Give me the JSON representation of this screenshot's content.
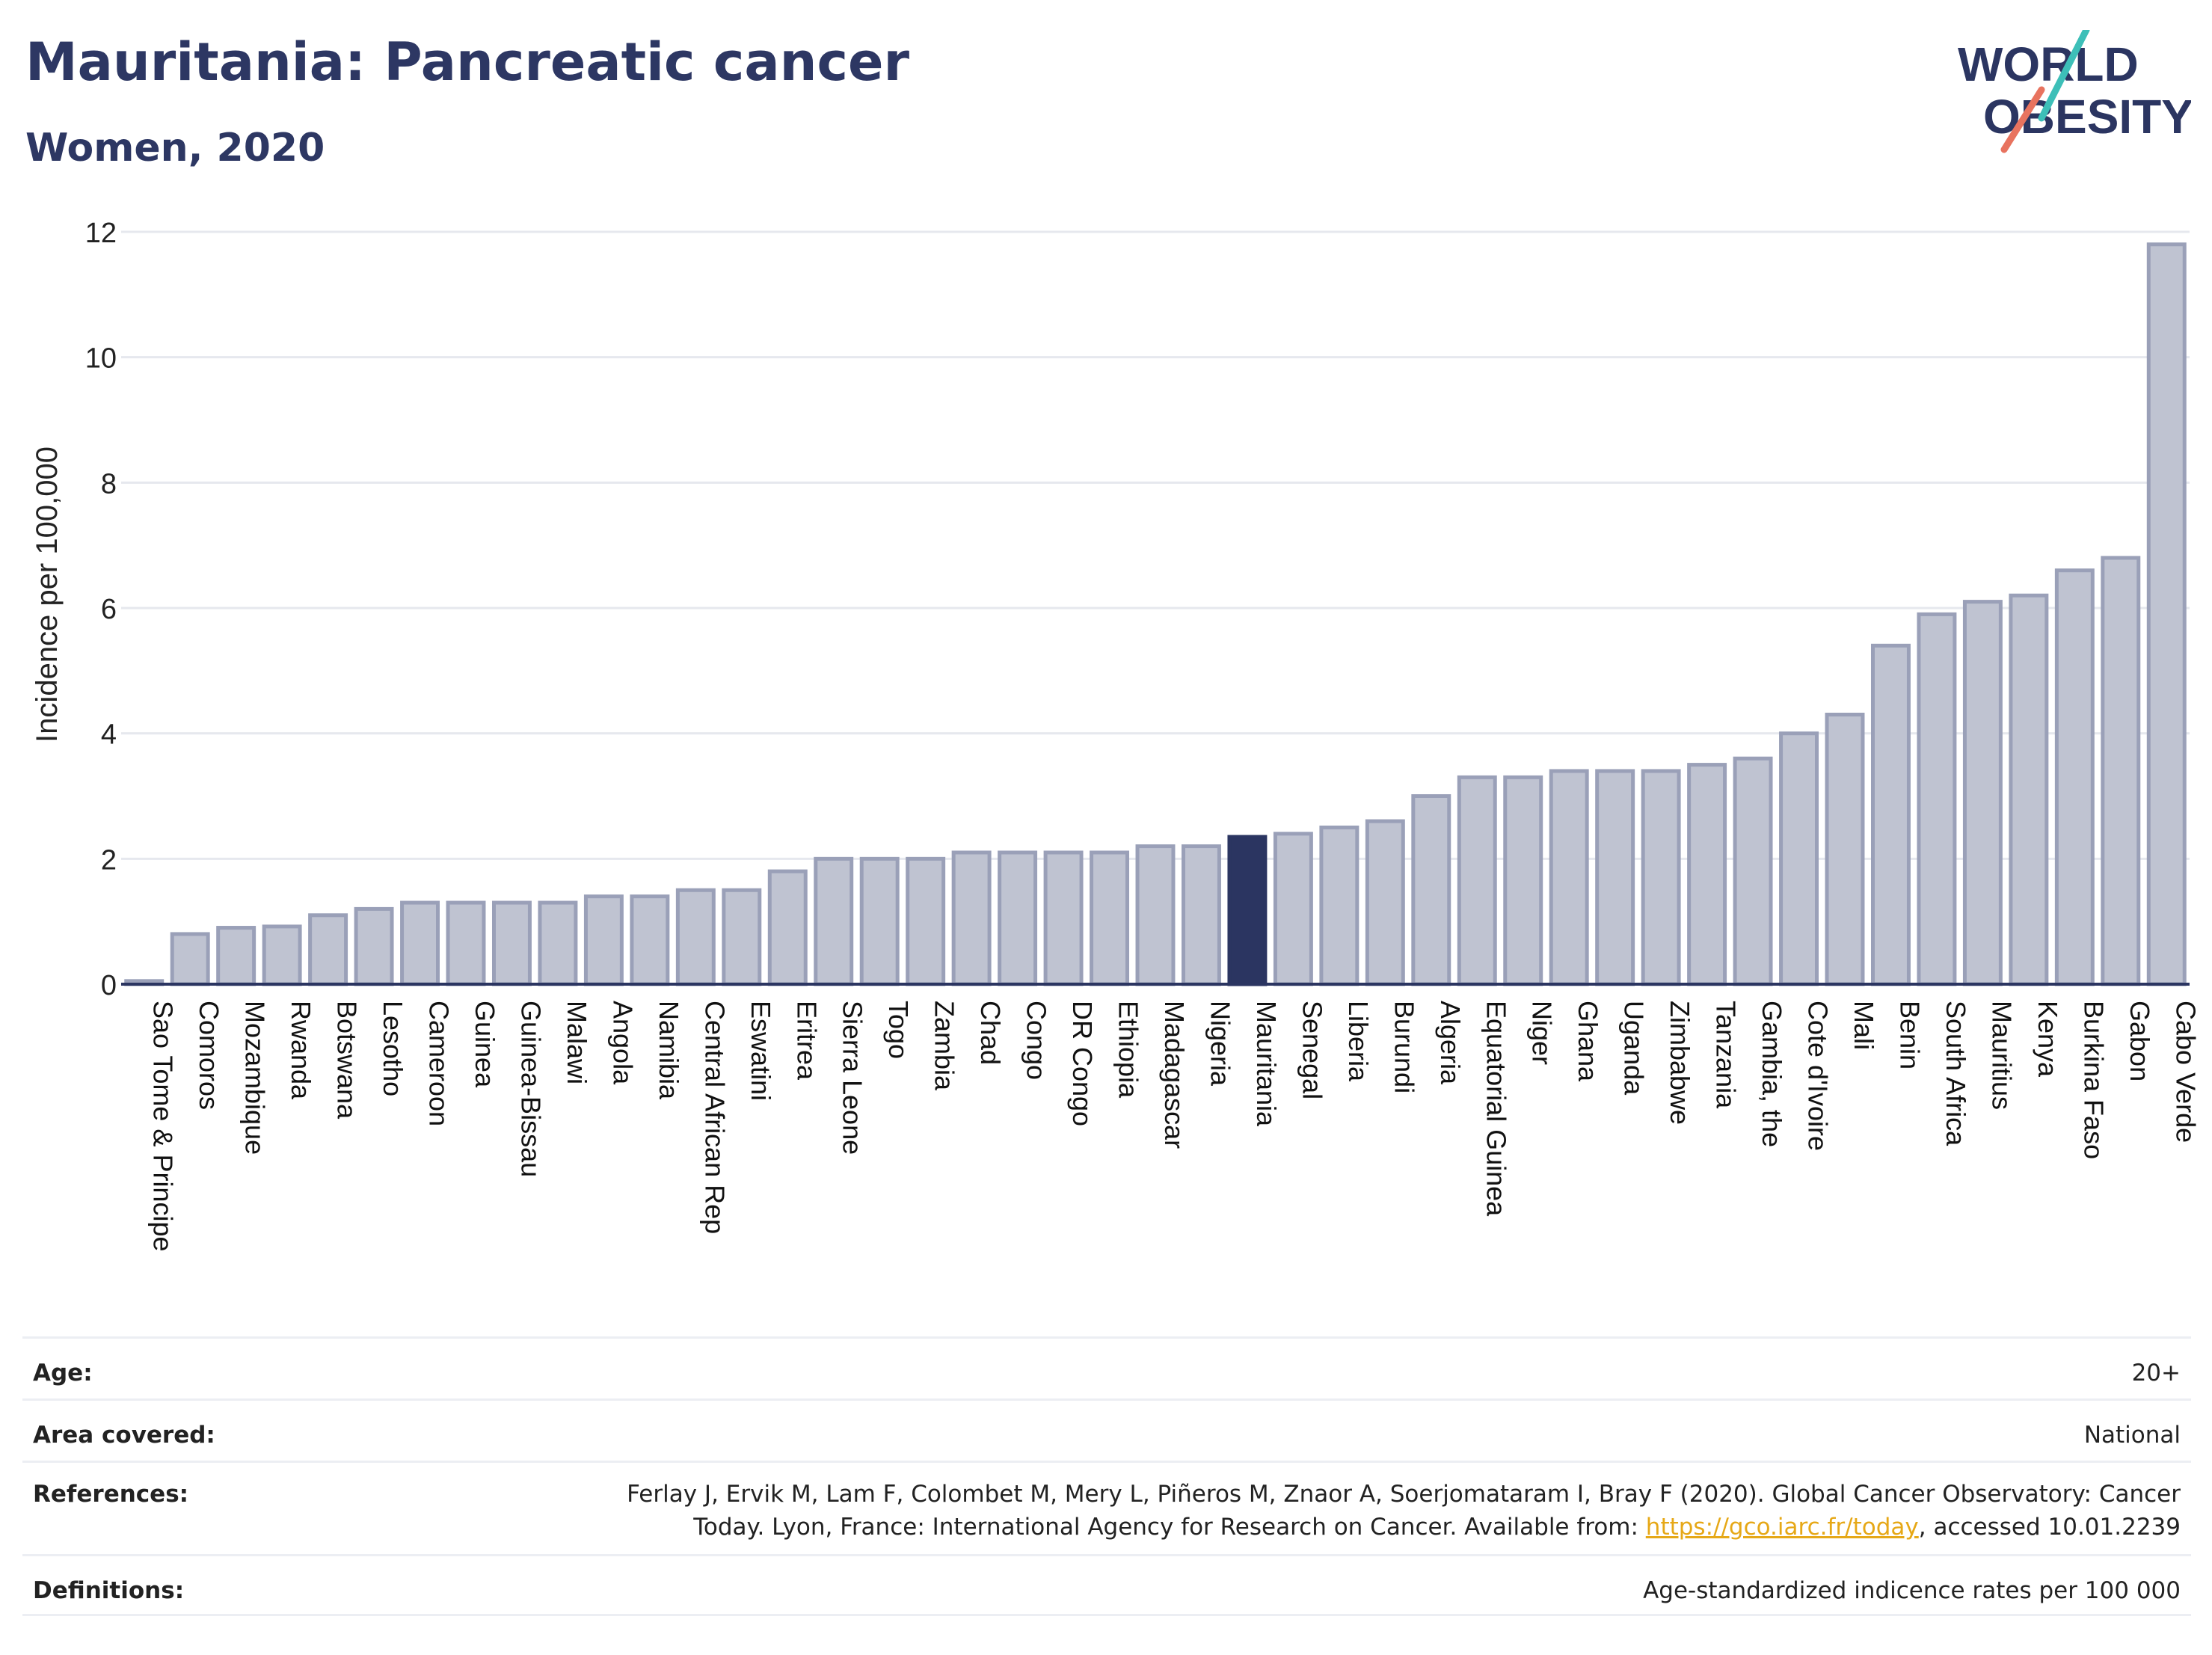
{
  "header": {
    "title": "Mauritania: Pancreatic cancer",
    "subtitle": "Women, 2020",
    "logo_line1": "WORLD",
    "logo_line2": "OBESITY"
  },
  "colors": {
    "bar_default": "#bfc3d1",
    "bar_default_stroke": "#9aa0b8",
    "bar_highlight": "#2b3561",
    "logo_text": "#2b3561",
    "logo_slash_top": "#3dbfb8",
    "logo_slash_bottom": "#e8735f"
  },
  "chart_data": {
    "type": "bar",
    "ylabel": "Incidence per 100,000",
    "ylim": [
      0,
      12
    ],
    "yticks": [
      0,
      2,
      4,
      6,
      8,
      10,
      12
    ],
    "grid": true,
    "highlight": "Mauritania",
    "categories": [
      "Sao Tome & Principe",
      "Comoros",
      "Mozambique",
      "Rwanda",
      "Botswana",
      "Lesotho",
      "Cameroon",
      "Guinea",
      "Guinea-Bissau",
      "Malawi",
      "Angola",
      "Namibia",
      "Central African Rep",
      "Eswatini",
      "Eritrea",
      "Sierra Leone",
      "Togo",
      "Zambia",
      "Chad",
      "Congo",
      "DR Congo",
      "Ethiopia",
      "Madagascar",
      "Nigeria",
      "Mauritania",
      "Senegal",
      "Liberia",
      "Burundi",
      "Algeria",
      "Equatorial Guinea",
      "Niger",
      "Ghana",
      "Uganda",
      "Zimbabwe",
      "Tanzania",
      "Gambia, the",
      "Cote d'Ivoire",
      "Mali",
      "Benin",
      "South Africa",
      "Mauritius",
      "Kenya",
      "Burkina Faso",
      "Gabon",
      "Cabo Verde"
    ],
    "values": [
      0.05,
      0.8,
      0.9,
      0.92,
      1.1,
      1.2,
      1.3,
      1.3,
      1.3,
      1.3,
      1.4,
      1.4,
      1.5,
      1.5,
      1.8,
      2.0,
      2.0,
      2.0,
      2.1,
      2.1,
      2.1,
      2.1,
      2.2,
      2.2,
      2.35,
      2.4,
      2.5,
      2.6,
      3.0,
      3.3,
      3.3,
      3.4,
      3.4,
      3.4,
      3.5,
      3.6,
      4.0,
      4.3,
      5.4,
      5.9,
      6.1,
      6.2,
      6.6,
      6.8,
      11.8
    ]
  },
  "meta": {
    "age_label": "Age:",
    "age_value": "20+",
    "area_label": "Area covered:",
    "area_value": "National",
    "references_label": "References:",
    "references_line1": "Ferlay J, Ervik M, Lam F, Colombet M, Mery L, Piñeros M, Znaor A, Soerjomataram I, Bray F (2020). Global Cancer Observatory: Cancer",
    "references_line2_pre": "Today. Lyon, France: International Agency for Research on Cancer. Available from: ",
    "references_link": "https://gco.iarc.fr/today",
    "references_line2_post": ", accessed 10.01.2239",
    "definitions_label": "Definitions:",
    "definitions_value": "Age-standardized indicence rates per 100 000"
  }
}
